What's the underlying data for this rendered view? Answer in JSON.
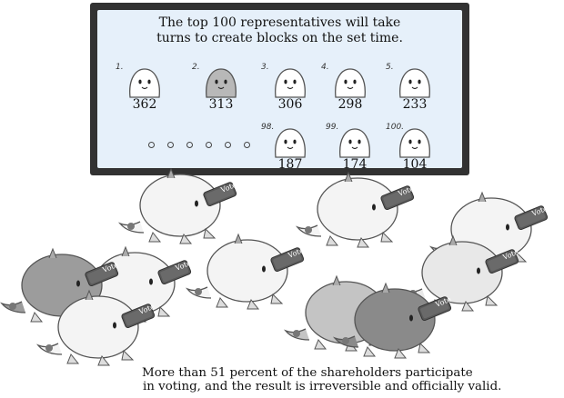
{
  "board": {
    "headline_line1": "The top 100 representatives will take",
    "headline_line2": "turns to create blocks on the set time.",
    "top_reps": [
      {
        "rank": "1.",
        "votes": "362",
        "color": "#ffffff"
      },
      {
        "rank": "2.",
        "votes": "313",
        "color": "#b8b8b8"
      },
      {
        "rank": "3.",
        "votes": "306",
        "color": "#ffffff"
      },
      {
        "rank": "4.",
        "votes": "298",
        "color": "#ffffff"
      },
      {
        "rank": "5.",
        "votes": "233",
        "color": "#ffffff"
      }
    ],
    "last_reps": [
      {
        "rank": "98.",
        "votes": "187",
        "color": "#ffffff"
      },
      {
        "rank": "99.",
        "votes": "174",
        "color": "#ffffff"
      },
      {
        "rank": "100.",
        "votes": "104",
        "color": "#ffffff"
      }
    ]
  },
  "crowd": {
    "sign_text": "Vote",
    "voters": [
      {
        "shade": "#f4f4f4"
      },
      {
        "shade": "#f4f4f4"
      },
      {
        "shade": "#f4f4f4"
      },
      {
        "shade": "#f4f4f4"
      },
      {
        "shade": "#f4f4f4"
      },
      {
        "shade": "#9c9c9c"
      },
      {
        "shade": "#e8e8e8"
      },
      {
        "shade": "#f4f4f4"
      },
      {
        "shade": "#c4c4c4"
      },
      {
        "shade": "#8a8a8a"
      }
    ]
  },
  "caption": {
    "line1": "More than 51 percent of the shareholders participate",
    "line2": "in voting, and the result is irreversible and officially valid."
  }
}
